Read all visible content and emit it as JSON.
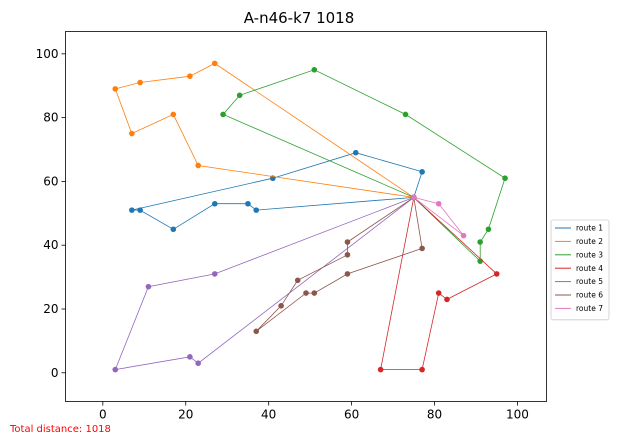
{
  "chart_data": {
    "type": "line",
    "title": "A-n46-k7 1018",
    "xlabel": "",
    "ylabel": "",
    "xlim": [
      -9,
      107
    ],
    "ylim": [
      -9,
      107
    ],
    "xticks": [
      0,
      20,
      40,
      60,
      80,
      100
    ],
    "yticks": [
      0,
      20,
      40,
      60,
      80,
      100
    ],
    "grid": false,
    "legend_position": "right",
    "depot": [
      75,
      55
    ],
    "series": [
      {
        "name": "route 1",
        "color": "#1f77b4",
        "points": [
          [
            75,
            55
          ],
          [
            37,
            51
          ],
          [
            35,
            53
          ],
          [
            27,
            53
          ],
          [
            17,
            45
          ],
          [
            9,
            51
          ],
          [
            7,
            51
          ],
          [
            41,
            61
          ],
          [
            61,
            69
          ],
          [
            77,
            63
          ],
          [
            75,
            55
          ]
        ]
      },
      {
        "name": "route 2",
        "color": "#ff7f0e",
        "points": [
          [
            75,
            55
          ],
          [
            23,
            65
          ],
          [
            17,
            81
          ],
          [
            7,
            75
          ],
          [
            3,
            89
          ],
          [
            9,
            91
          ],
          [
            21,
            93
          ],
          [
            27,
            97
          ],
          [
            75,
            55
          ]
        ]
      },
      {
        "name": "route 3",
        "color": "#2ca02c",
        "points": [
          [
            75,
            55
          ],
          [
            29,
            81
          ],
          [
            33,
            87
          ],
          [
            51,
            95
          ],
          [
            73,
            81
          ],
          [
            97,
            61
          ],
          [
            93,
            45
          ],
          [
            91,
            41
          ],
          [
            91,
            35
          ],
          [
            75,
            55
          ]
        ]
      },
      {
        "name": "route 4",
        "color": "#d62728",
        "points": [
          [
            75,
            55
          ],
          [
            95,
            31
          ],
          [
            83,
            23
          ],
          [
            81,
            25
          ],
          [
            77,
            1
          ],
          [
            67,
            1
          ],
          [
            75,
            55
          ]
        ]
      },
      {
        "name": "route 5",
        "color": "#9467bd",
        "points": [
          [
            75,
            55
          ],
          [
            23,
            3
          ],
          [
            21,
            5
          ],
          [
            3,
            1
          ],
          [
            11,
            27
          ],
          [
            27,
            31
          ],
          [
            75,
            55
          ]
        ]
      },
      {
        "name": "route 6",
        "color": "#8c564b",
        "points": [
          [
            75,
            55
          ],
          [
            59,
            41
          ],
          [
            59,
            37
          ],
          [
            47,
            29
          ],
          [
            43,
            21
          ],
          [
            37,
            13
          ],
          [
            49,
            25
          ],
          [
            51,
            25
          ],
          [
            59,
            31
          ],
          [
            77,
            39
          ],
          [
            75,
            55
          ]
        ]
      },
      {
        "name": "route 7",
        "color": "#e377c2",
        "points": [
          [
            75,
            55
          ],
          [
            81,
            53
          ],
          [
            87,
            43
          ],
          [
            75,
            55
          ]
        ]
      }
    ],
    "footer": "Total distance: 1018"
  }
}
